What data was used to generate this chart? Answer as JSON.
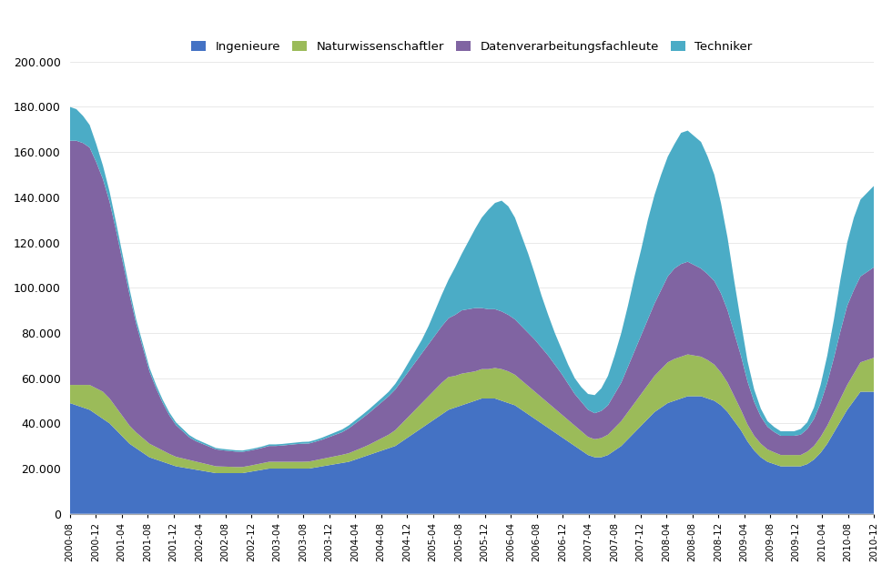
{
  "legend_labels": [
    "Ingenieure",
    "Naturwissenschaftler",
    "Datenverarbeitungsfachleute",
    "Techniker"
  ],
  "colors": [
    "#4472C4",
    "#9BBB59",
    "#8064A2",
    "#4BACC6"
  ],
  "ylim": [
    0,
    200000
  ],
  "yticks": [
    0,
    20000,
    40000,
    60000,
    80000,
    100000,
    120000,
    140000,
    160000,
    180000,
    200000
  ],
  "ytick_labels": [
    "0",
    "20.000",
    "40.000",
    "60.000",
    "80.000",
    "100.000",
    "120.000",
    "140.000",
    "160.000",
    "180.000",
    "200.000"
  ],
  "background_color": "#FFFFFF",
  "ingenieure": [
    49000,
    48000,
    47000,
    46000,
    44000,
    42000,
    40000,
    37000,
    34000,
    31000,
    29000,
    27000,
    25000,
    24000,
    23000,
    22000,
    21000,
    20500,
    20000,
    19500,
    19000,
    18500,
    18000,
    18000,
    18000,
    18000,
    18000,
    18500,
    19000,
    19500,
    20000,
    20000,
    20000,
    20000,
    20000,
    20000,
    20000,
    20500,
    21000,
    21500,
    22000,
    22500,
    23000,
    24000,
    25000,
    26000,
    27000,
    28000,
    29000,
    30000,
    32000,
    34000,
    36000,
    38000,
    40000,
    42000,
    44000,
    46000,
    47000,
    48000,
    49000,
    50000,
    51000,
    51000,
    51000,
    50000,
    49000,
    48000,
    46000,
    44000,
    42000,
    40000,
    38000,
    36000,
    34000,
    32000,
    30000,
    28000,
    26000,
    25000,
    25000,
    26000,
    28000,
    30000,
    33000,
    36000,
    39000,
    42000,
    45000,
    47000,
    49000,
    50000,
    51000,
    52000,
    52000,
    52000,
    51000,
    50000,
    48000,
    45000,
    41000,
    37000,
    32000,
    28000,
    25000,
    23000,
    22000,
    21000,
    21000,
    21000,
    21000,
    22000,
    24000,
    27000,
    31000,
    36000,
    41000,
    46000,
    50000,
    54000,
    54000,
    54000
  ],
  "naturwissenschaftler": [
    8000,
    9000,
    10000,
    11000,
    11500,
    12000,
    11000,
    10000,
    9000,
    8000,
    7000,
    6500,
    6000,
    5500,
    5000,
    4500,
    4200,
    4000,
    3800,
    3600,
    3400,
    3200,
    3000,
    2900,
    2800,
    2700,
    2700,
    2700,
    2800,
    2900,
    3000,
    3000,
    3000,
    3000,
    3000,
    3000,
    3100,
    3200,
    3300,
    3400,
    3500,
    3600,
    3800,
    4000,
    4200,
    4500,
    5000,
    5500,
    6000,
    7000,
    8000,
    9000,
    10000,
    11000,
    12000,
    13000,
    14000,
    14500,
    14000,
    14000,
    13500,
    13000,
    13000,
    13000,
    13500,
    14000,
    14000,
    13500,
    13000,
    12500,
    12000,
    11500,
    11000,
    10500,
    10000,
    9500,
    9000,
    8500,
    8000,
    8000,
    8500,
    9000,
    10000,
    11000,
    12000,
    13000,
    14000,
    15000,
    16000,
    17000,
    18000,
    18500,
    18500,
    18500,
    18000,
    17500,
    17000,
    16000,
    14500,
    13000,
    11000,
    9000,
    7500,
    6500,
    6000,
    5500,
    5200,
    5000,
    5000,
    5000,
    5000,
    5500,
    6000,
    7000,
    8000,
    9000,
    10000,
    11000,
    12000,
    13000,
    14000,
    15000
  ],
  "datenverarbeitungsfachleute": [
    108000,
    108000,
    107000,
    105000,
    100000,
    94000,
    87000,
    78000,
    68000,
    58000,
    48000,
    40000,
    32000,
    26000,
    21000,
    17000,
    14000,
    12000,
    10000,
    9000,
    8500,
    8000,
    7500,
    7200,
    7000,
    6800,
    6700,
    6700,
    6700,
    6800,
    7000,
    7000,
    7200,
    7500,
    7800,
    8000,
    8000,
    8200,
    8500,
    9000,
    9500,
    10000,
    11000,
    12000,
    13000,
    14000,
    15000,
    16000,
    17000,
    18000,
    19000,
    20000,
    21000,
    22000,
    23000,
    24000,
    25000,
    26000,
    27000,
    28000,
    28000,
    28000,
    27000,
    26500,
    26000,
    25500,
    25000,
    24500,
    24000,
    23500,
    23000,
    22000,
    21000,
    19500,
    18000,
    16000,
    14000,
    13000,
    12000,
    11500,
    12000,
    13000,
    15000,
    17000,
    20000,
    23000,
    26000,
    29000,
    32000,
    35000,
    38000,
    40000,
    41000,
    41000,
    40000,
    39000,
    38000,
    37000,
    35000,
    32000,
    28000,
    24000,
    19000,
    15000,
    12000,
    10000,
    9000,
    8500,
    8500,
    8500,
    9000,
    10000,
    12000,
    15000,
    19000,
    24000,
    30000,
    35000,
    37000,
    38000,
    39000,
    40000
  ],
  "techniker": [
    15000,
    14000,
    12000,
    10000,
    8000,
    6000,
    4500,
    3500,
    3000,
    2500,
    2000,
    1800,
    1600,
    1500,
    1400,
    1300,
    1200,
    1100,
    1000,
    900,
    800,
    700,
    600,
    600,
    600,
    600,
    600,
    600,
    600,
    600,
    700,
    700,
    700,
    700,
    700,
    800,
    800,
    800,
    900,
    1000,
    1100,
    1200,
    1300,
    1400,
    1500,
    1600,
    1700,
    1800,
    2000,
    2500,
    3000,
    4000,
    5000,
    6000,
    8000,
    11000,
    14000,
    17000,
    21000,
    25000,
    30000,
    35000,
    40000,
    44000,
    47000,
    49000,
    48000,
    45000,
    40000,
    35000,
    29000,
    23000,
    18000,
    14000,
    11000,
    8500,
    7000,
    6500,
    7000,
    8000,
    10000,
    13000,
    17000,
    22000,
    27000,
    33000,
    38000,
    44000,
    48000,
    51000,
    53000,
    55000,
    58000,
    58000,
    57000,
    56000,
    52000,
    47000,
    40000,
    32000,
    23000,
    15000,
    9000,
    5500,
    3500,
    2500,
    2200,
    2000,
    2000,
    2000,
    2500,
    3000,
    5000,
    8000,
    12000,
    17000,
    23000,
    28000,
    32000,
    34000,
    35000,
    36000
  ],
  "xtick_labels": [
    "2000-08",
    "2000-12",
    "2001-04",
    "2001-08",
    "2001-12",
    "2002-04",
    "2002-08",
    "2002-12",
    "2003-04",
    "2003-08",
    "2003-12",
    "2004-04",
    "2004-08",
    "2004-12",
    "2005-04",
    "2005-08",
    "2005-12",
    "2006-04",
    "2006-08",
    "2006-12",
    "2007-04",
    "2007-08",
    "2007-12",
    "2008-04",
    "2008-08",
    "2008-12",
    "2009-04",
    "2009-08",
    "2009-12",
    "2010-04",
    "2010-08",
    "2010-12"
  ],
  "n_ticks": 32,
  "n_data": 122
}
